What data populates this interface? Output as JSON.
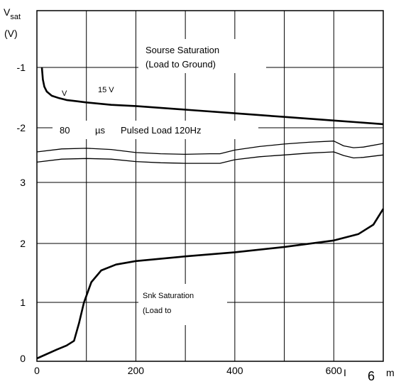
{
  "chart_data": {
    "type": "line",
    "title": "",
    "ylabel_main": "V",
    "ylabel_sub": "sat",
    "ylabel_unit": "(V)",
    "xlabel_fragments": [
      "I",
      "6",
      "m"
    ],
    "xlim": [
      0,
      700
    ],
    "x_ticks": [
      {
        "value": 0,
        "label": "0"
      },
      {
        "value": 200,
        "label": "200"
      },
      {
        "value": 400,
        "label": "400"
      },
      {
        "value": 600,
        "label": "600"
      }
    ],
    "y_scale_note": "positions correspond to saturation voltage magnitude from the rail; upper half labeled negative (source), lower half positive (sink)",
    "y_ticks": [
      {
        "label": "-1"
      },
      {
        "label": "-2"
      },
      {
        "label": "3"
      },
      {
        "label": "2"
      },
      {
        "label": "1"
      },
      {
        "label": "0"
      }
    ],
    "grid": true,
    "annotations": {
      "source_line1": "Sourse Saturation",
      "source_line2": "(Load to Ground)",
      "v_label": "V",
      "v15_label": "15 V",
      "pulse_80": "80",
      "pulse_mu": "µs",
      "pulsed_load": "Pulsed Load 120Hz",
      "sink_line1": "Snk Saturation",
      "sink_line2": "(Load to"
    },
    "series": [
      {
        "role": "source",
        "x": [
          10,
          12,
          15,
          20,
          30,
          45,
          60,
          80,
          100,
          150,
          200,
          300,
          400,
          500,
          600,
          700
        ],
        "y": [
          -1.0,
          -1.2,
          -1.32,
          -1.4,
          -1.47,
          -1.51,
          -1.54,
          -1.56,
          -1.58,
          -1.62,
          -1.64,
          -1.7,
          -1.76,
          -1.82,
          -1.88,
          -1.94
        ]
      },
      {
        "role": "pulsed-upper",
        "x": [
          0,
          50,
          100,
          150,
          200,
          250,
          300,
          350,
          370,
          400,
          450,
          500,
          550,
          600,
          620,
          640,
          660,
          700
        ],
        "y": [
          -2.4,
          -2.35,
          -2.34,
          -2.36,
          -2.41,
          -2.43,
          -2.44,
          -2.43,
          -2.43,
          -2.37,
          -2.31,
          -2.27,
          -2.24,
          -2.22,
          -2.3,
          -2.33,
          -2.32,
          -2.26
        ]
      },
      {
        "role": "pulsed-lower",
        "x": [
          0,
          50,
          100,
          150,
          200,
          250,
          300,
          350,
          370,
          400,
          450,
          500,
          550,
          600,
          620,
          640,
          660,
          700
        ],
        "y": [
          -2.57,
          -2.52,
          -2.51,
          -2.52,
          -2.56,
          -2.58,
          -2.59,
          -2.59,
          -2.59,
          -2.53,
          -2.48,
          -2.45,
          -2.42,
          -2.4,
          -2.46,
          -2.5,
          -2.49,
          -2.45
        ]
      },
      {
        "role": "sink",
        "x": [
          0,
          40,
          60,
          75,
          85,
          95,
          110,
          130,
          160,
          200,
          300,
          400,
          500,
          600,
          650,
          680,
          700
        ],
        "y": [
          0.0,
          0.15,
          0.22,
          0.3,
          0.6,
          0.95,
          1.3,
          1.5,
          1.6,
          1.66,
          1.74,
          1.81,
          1.9,
          2.01,
          2.12,
          2.28,
          2.55
        ]
      }
    ]
  }
}
